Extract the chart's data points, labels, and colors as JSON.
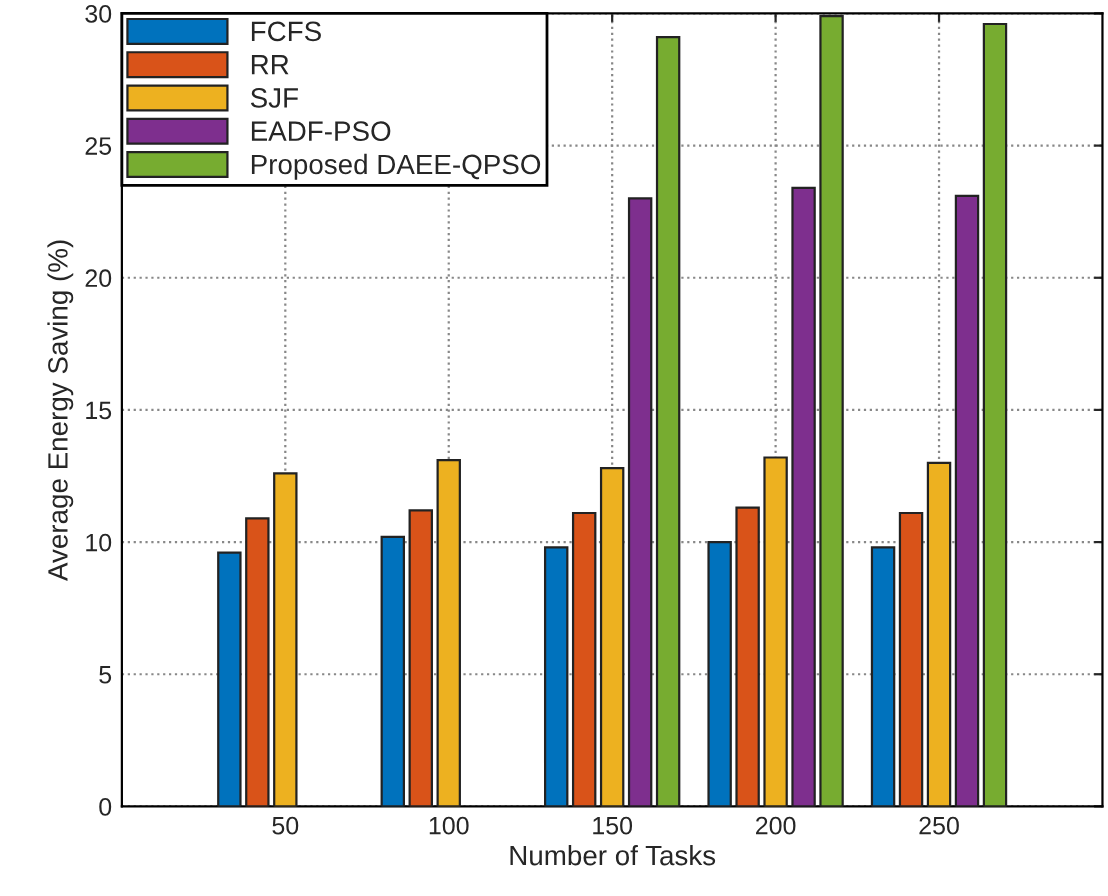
{
  "chart_data": {
    "type": "bar",
    "xlabel": "Number of Tasks",
    "ylabel": "Average Energy Saving (%)",
    "categories": [
      "50",
      "100",
      "150",
      "200",
      "250"
    ],
    "series": [
      {
        "name": "FCFS",
        "color": "#0072bd",
        "values": [
          9.6,
          10.2,
          9.8,
          10.0,
          9.8
        ]
      },
      {
        "name": "RR",
        "color": "#d95319",
        "values": [
          10.9,
          11.2,
          11.1,
          11.3,
          11.1
        ]
      },
      {
        "name": "SJF",
        "color": "#edb120",
        "values": [
          12.6,
          13.1,
          12.8,
          13.2,
          13.0
        ]
      },
      {
        "name": "EADF-PSO",
        "color": "#7e2f8e",
        "values": [
          null,
          null,
          23.0,
          23.4,
          23.1
        ]
      },
      {
        "name": "Proposed DAEE-QPSO",
        "color": "#77ac30",
        "values": [
          null,
          null,
          29.1,
          29.9,
          29.6
        ]
      }
    ],
    "ylim": [
      0,
      30
    ],
    "yticks": [
      0,
      5,
      10,
      15,
      20,
      25,
      30
    ],
    "grid": true,
    "legend": "top left"
  }
}
